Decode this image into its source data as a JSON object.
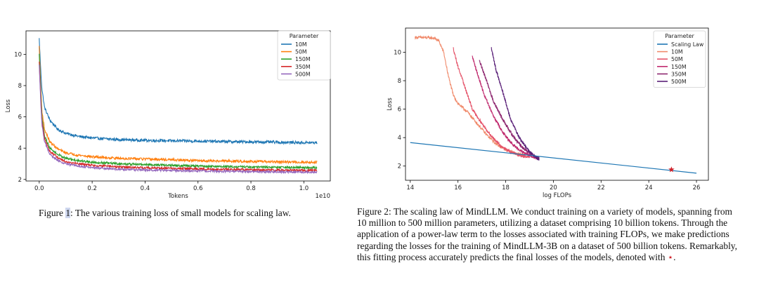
{
  "chart_data": [
    {
      "type": "line",
      "title": "",
      "xlabel": "Tokens",
      "ylabel": "Loss",
      "x_offset_label": "1e10",
      "xlim": [
        -0.05,
        1.1
      ],
      "ylim": [
        1.9,
        11.5
      ],
      "xticks": [
        0.0,
        0.2,
        0.4,
        0.6,
        0.8,
        1.0
      ],
      "xtick_labels": [
        "0.0",
        "0.2",
        "0.4",
        "0.6",
        "0.8",
        "1.0"
      ],
      "yticks": [
        2,
        4,
        6,
        8,
        10
      ],
      "ytick_labels": [
        "2",
        "4",
        "6",
        "8",
        "10"
      ],
      "grid": false,
      "legend_title": "Parameter",
      "legend_position": "top-right",
      "series": [
        {
          "name": "10M",
          "color": "#1f77b4",
          "noise": 0.09,
          "x": [
            0.0,
            0.005,
            0.01,
            0.02,
            0.04,
            0.07,
            0.1,
            0.15,
            0.2,
            0.3,
            0.4,
            0.5,
            0.6,
            0.7,
            0.8,
            0.9,
            1.0,
            1.05
          ],
          "y": [
            11.0,
            9.2,
            7.8,
            6.6,
            5.8,
            5.2,
            4.95,
            4.75,
            4.65,
            4.55,
            4.5,
            4.47,
            4.45,
            4.42,
            4.4,
            4.38,
            4.35,
            4.35
          ]
        },
        {
          "name": "50M",
          "color": "#ff7f0e",
          "noise": 0.08,
          "x": [
            0.0,
            0.005,
            0.01,
            0.02,
            0.04,
            0.07,
            0.1,
            0.15,
            0.2,
            0.3,
            0.4,
            0.5,
            0.6,
            0.7,
            0.8,
            0.9,
            1.0,
            1.05
          ],
          "y": [
            10.5,
            8.2,
            6.4,
            5.2,
            4.4,
            3.95,
            3.7,
            3.55,
            3.45,
            3.35,
            3.3,
            3.25,
            3.2,
            3.18,
            3.15,
            3.12,
            3.1,
            3.1
          ]
        },
        {
          "name": "150M",
          "color": "#2ca02c",
          "noise": 0.07,
          "x": [
            0.0,
            0.005,
            0.01,
            0.02,
            0.04,
            0.07,
            0.1,
            0.15,
            0.2,
            0.3,
            0.4,
            0.5,
            0.6,
            0.7,
            0.8,
            0.9,
            1.0,
            1.05
          ],
          "y": [
            10.0,
            7.8,
            6.0,
            4.8,
            4.0,
            3.6,
            3.35,
            3.2,
            3.1,
            3.0,
            2.95,
            2.9,
            2.85,
            2.82,
            2.8,
            2.78,
            2.75,
            2.75
          ]
        },
        {
          "name": "350M",
          "color": "#d62728",
          "noise": 0.07,
          "x": [
            0.0,
            0.005,
            0.01,
            0.02,
            0.04,
            0.07,
            0.1,
            0.15,
            0.2,
            0.3,
            0.4,
            0.5,
            0.6,
            0.7,
            0.8,
            0.9,
            1.0,
            1.05
          ],
          "y": [
            9.5,
            7.4,
            5.7,
            4.6,
            3.8,
            3.4,
            3.15,
            3.0,
            2.9,
            2.8,
            2.75,
            2.7,
            2.67,
            2.64,
            2.62,
            2.6,
            2.58,
            2.58
          ]
        },
        {
          "name": "500M",
          "color": "#9467bd",
          "noise": 0.07,
          "x": [
            0.0,
            0.005,
            0.01,
            0.02,
            0.04,
            0.07,
            0.1,
            0.15,
            0.2,
            0.3,
            0.4,
            0.5,
            0.6,
            0.7,
            0.8,
            0.9,
            1.0,
            1.05
          ],
          "y": [
            9.3,
            7.2,
            5.5,
            4.4,
            3.6,
            3.2,
            3.0,
            2.85,
            2.75,
            2.65,
            2.6,
            2.57,
            2.55,
            2.52,
            2.5,
            2.48,
            2.47,
            2.47
          ]
        }
      ]
    },
    {
      "type": "line",
      "title": "",
      "xlabel": "log FLOPs",
      "ylabel": "Loss",
      "xlim": [
        13.8,
        26.5
      ],
      "ylim": [
        1.0,
        11.7
      ],
      "xticks": [
        14,
        16,
        18,
        20,
        22,
        24,
        26
      ],
      "xtick_labels": [
        "14",
        "16",
        "18",
        "20",
        "22",
        "24",
        "26"
      ],
      "yticks": [
        2,
        4,
        6,
        8,
        10
      ],
      "ytick_labels": [
        "2",
        "4",
        "6",
        "8",
        "10"
      ],
      "grid": false,
      "legend_title": "Parameter",
      "legend_position": "top-right",
      "fit_line": {
        "name": "Scaling Law",
        "color": "#1f77b4",
        "x": [
          14.0,
          26.0
        ],
        "y": [
          3.65,
          1.5
        ]
      },
      "star_point": {
        "x": 24.95,
        "y": 1.75,
        "color": "#d0212a"
      },
      "series": [
        {
          "name": "10M",
          "color": "#f08a6b",
          "noise": 0.1,
          "x": [
            14.2,
            15.0,
            15.2,
            15.4,
            15.6,
            15.8,
            16.0,
            16.4,
            16.8,
            17.2,
            17.6,
            18.0,
            18.4,
            18.8
          ],
          "y": [
            11.05,
            11.0,
            10.8,
            10.0,
            8.3,
            7.0,
            6.4,
            5.8,
            5.0,
            4.2,
            3.55,
            3.15,
            2.9,
            2.75
          ]
        },
        {
          "name": "50M",
          "color": "#e5546a",
          "noise": 0.1,
          "x": [
            15.8,
            16.0,
            16.3,
            16.6,
            17.0,
            17.4,
            17.8,
            18.2,
            18.6,
            19.0
          ],
          "y": [
            10.3,
            9.0,
            7.5,
            6.0,
            5.0,
            4.1,
            3.4,
            3.0,
            2.75,
            2.6
          ]
        },
        {
          "name": "150M",
          "color": "#c02a6e",
          "noise": 0.1,
          "x": [
            16.6,
            16.8,
            17.1,
            17.5,
            17.9,
            18.3,
            18.7,
            19.1,
            19.3
          ],
          "y": [
            9.7,
            8.6,
            7.0,
            5.5,
            4.3,
            3.5,
            3.0,
            2.7,
            2.55
          ]
        },
        {
          "name": "350M",
          "color": "#8e2870",
          "noise": 0.1,
          "x": [
            16.9,
            17.2,
            17.5,
            17.9,
            18.3,
            18.7,
            19.1,
            19.4
          ],
          "y": [
            9.4,
            8.0,
            6.5,
            5.2,
            4.1,
            3.3,
            2.8,
            2.55
          ]
        },
        {
          "name": "500M",
          "color": "#5a2078",
          "noise": 0.1,
          "x": [
            17.4,
            17.6,
            17.9,
            18.2,
            18.6,
            19.0,
            19.4
          ],
          "y": [
            10.3,
            8.7,
            7.1,
            5.3,
            3.9,
            3.0,
            2.45
          ]
        }
      ]
    }
  ],
  "captions": {
    "figure1": {
      "prefix": "Figure ",
      "ref": "1",
      "text": ": The various training loss of small models for scaling law."
    },
    "figure2": {
      "text": "Figure 2: The scaling law of MindLLM. We conduct training on a variety of models, spanning from 10 million to 500 million parameters, utilizing a dataset comprising 10 billion tokens. Through the application of a power-law term to the losses associated with training FLOPs, we make predictions regarding the losses for the training of MindLLM-3B on a dataset of 500 billion tokens. Remarkably, this fitting process accurately predicts the final losses of the models, denoted with ",
      "star": "⋆",
      "end": "."
    }
  }
}
